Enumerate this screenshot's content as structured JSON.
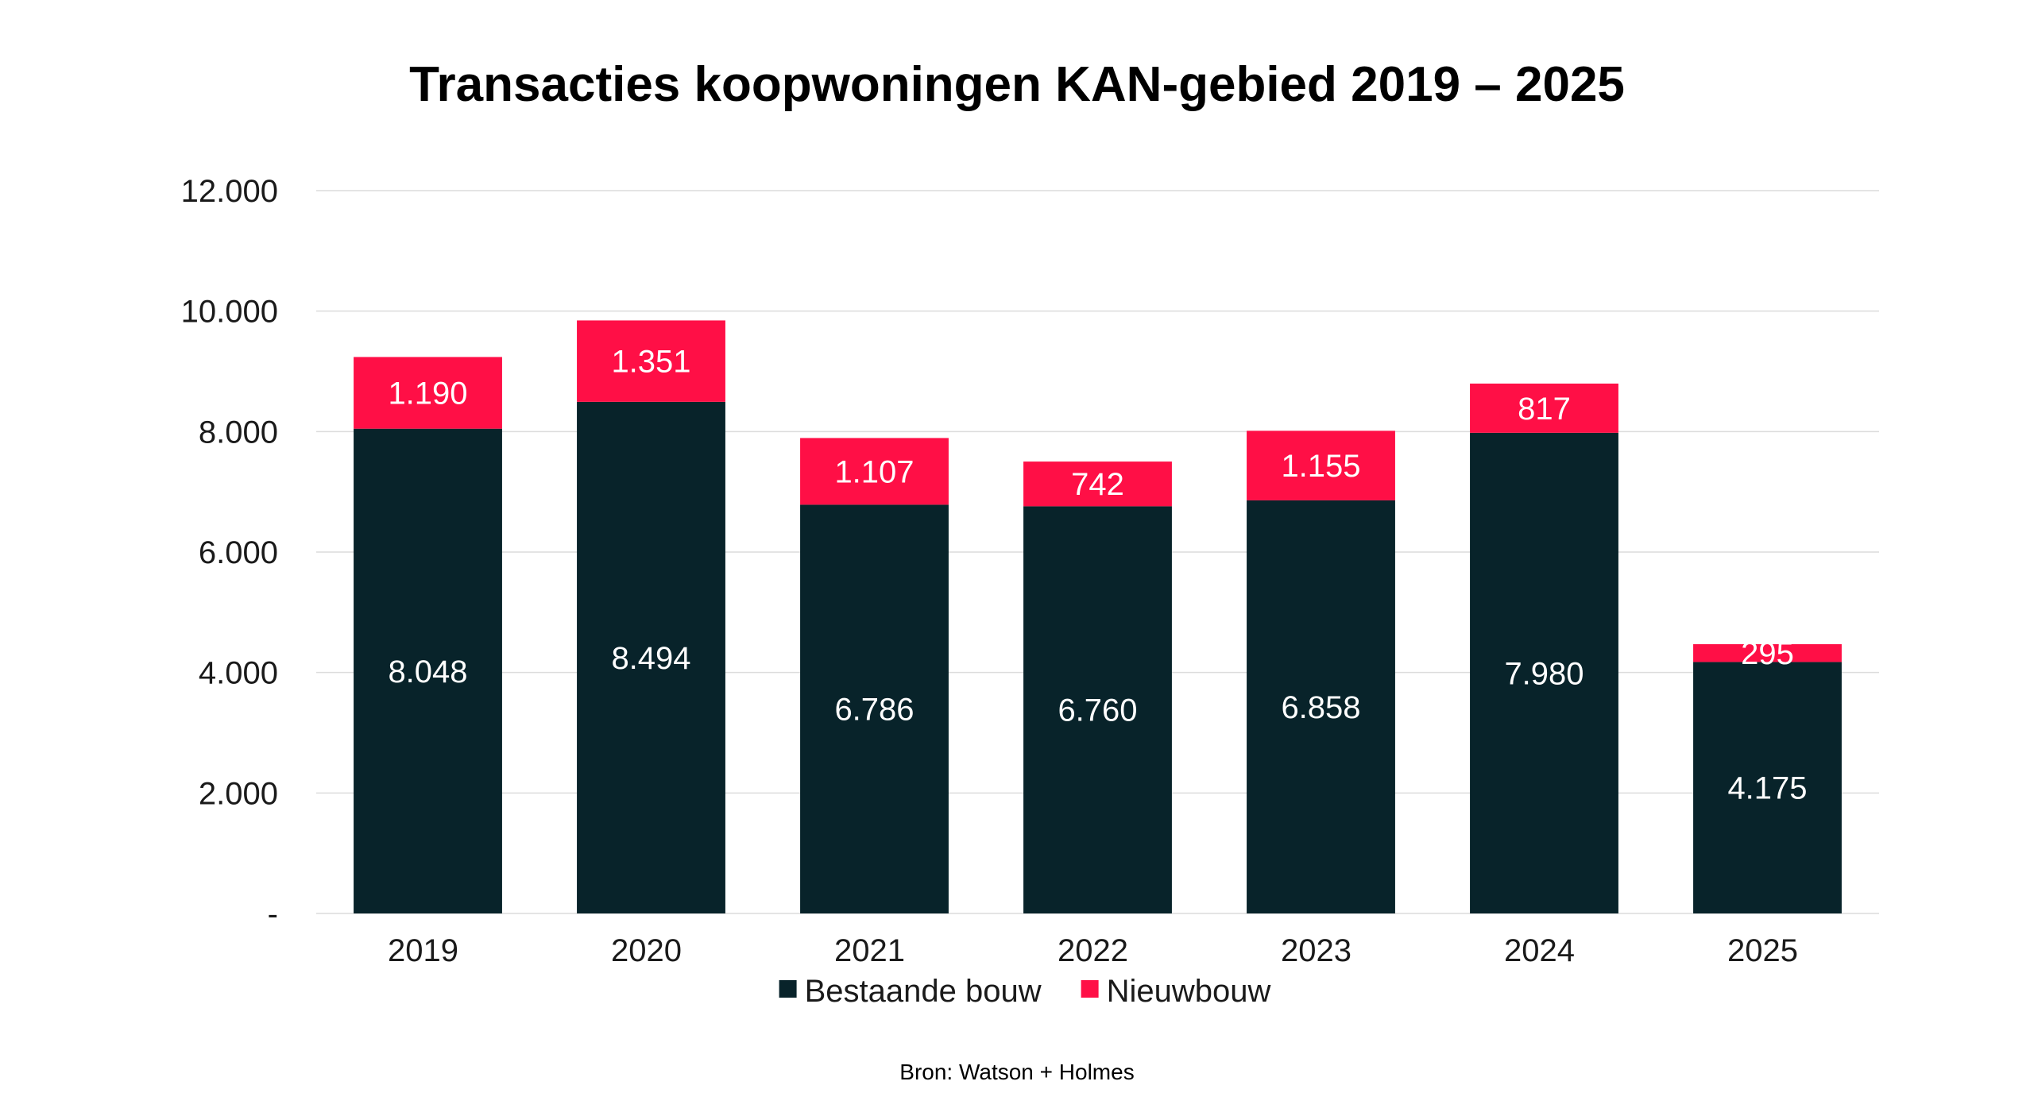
{
  "chart_data": {
    "type": "bar",
    "stacked": true,
    "title": "Transacties koopwoningen KAN-gebied 2019 – 2025",
    "categories": [
      "2019",
      "2020",
      "2021",
      "2022",
      "2023",
      "2024",
      "2025"
    ],
    "series": [
      {
        "name": "Bestaande bouw",
        "color": "#08232A",
        "values": [
          8048,
          8494,
          6786,
          6760,
          6858,
          7980,
          4175
        ],
        "labels": [
          "8.048",
          "8.494",
          "6.786",
          "6.760",
          "6.858",
          "7.980",
          "4.175"
        ]
      },
      {
        "name": "Nieuwbouw",
        "color": "#FF0F46",
        "values": [
          1190,
          1351,
          1107,
          742,
          1155,
          817,
          295
        ],
        "labels": [
          "1.190",
          "1.351",
          "1.107",
          "742",
          "1.155",
          "817",
          "295"
        ]
      }
    ],
    "ylim": [
      0,
      12000
    ],
    "yticks": [
      0,
      2000,
      4000,
      6000,
      8000,
      10000,
      12000
    ],
    "ytick_labels": [
      "-",
      "2.000",
      "4.000",
      "6.000",
      "8.000",
      "10.000",
      "12.000"
    ],
    "grid": true,
    "legend_position": "bottom",
    "xlabel": "",
    "ylabel": "",
    "source": "Bron: Watson + Holmes"
  }
}
